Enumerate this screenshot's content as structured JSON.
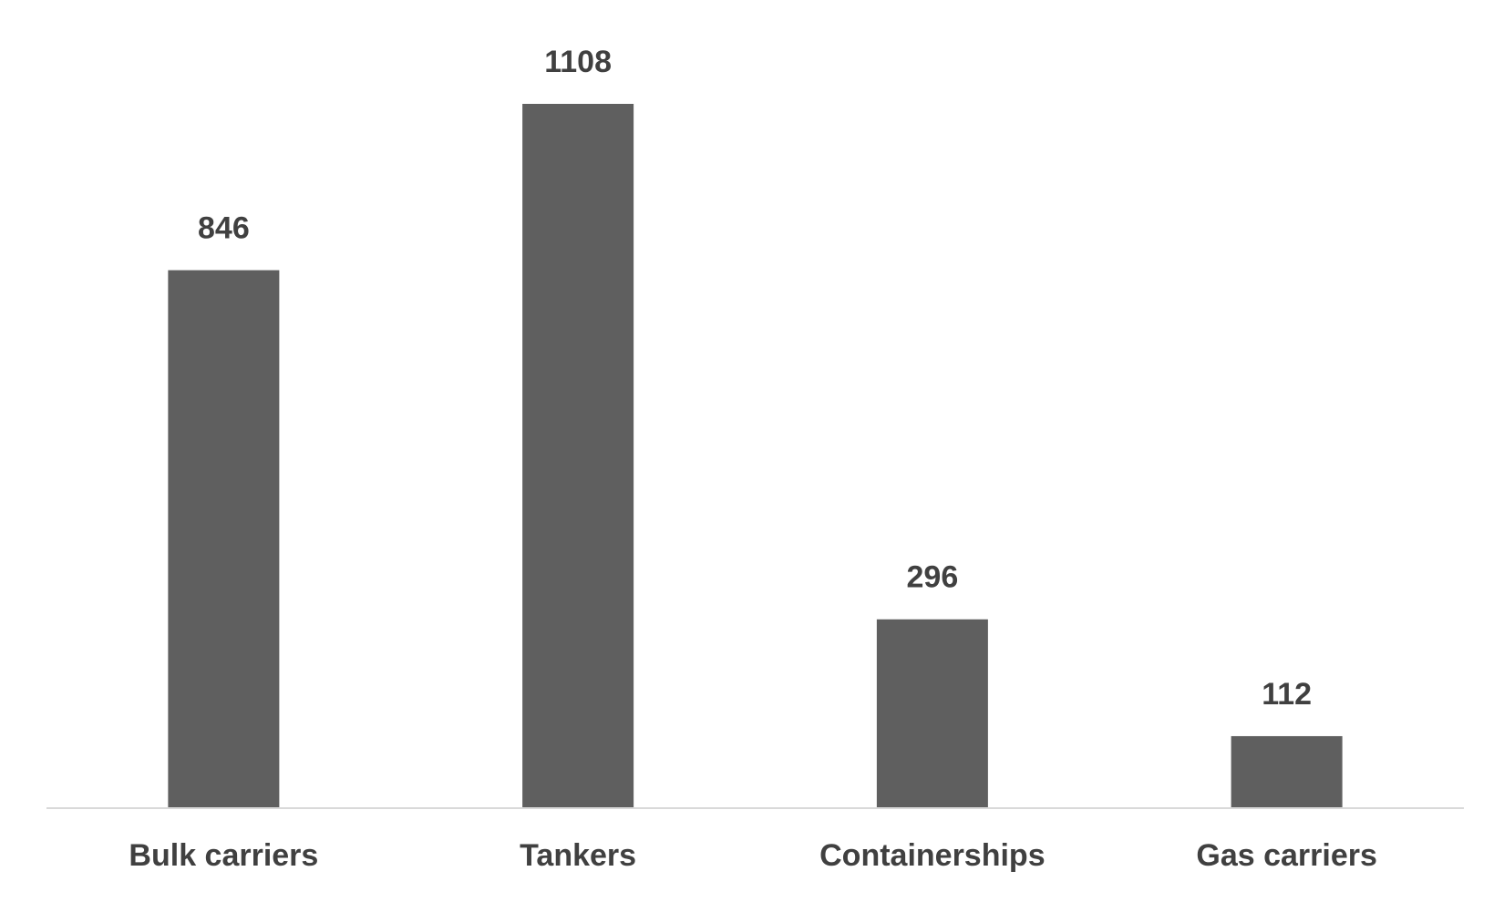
{
  "chart_data": {
    "type": "bar",
    "categories": [
      "Bulk carriers",
      "Tankers",
      "Containerships",
      "Gas carriers"
    ],
    "values": [
      846,
      1108,
      296,
      112
    ],
    "color": "#5f5f5f"
  }
}
